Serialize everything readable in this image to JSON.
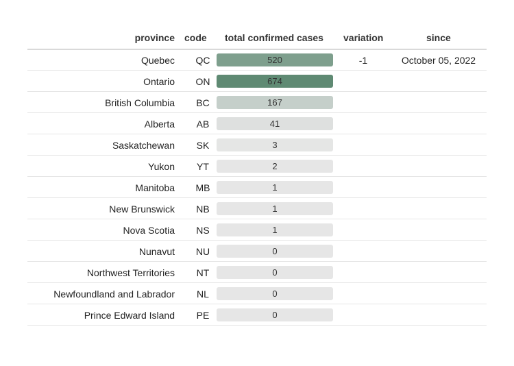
{
  "chart_data": {
    "type": "table",
    "columns": [
      "province",
      "code",
      "total confirmed cases",
      "variation",
      "since"
    ],
    "rows": [
      {
        "province": "Quebec",
        "code": "QC",
        "cases": 520,
        "variation": "-1",
        "since": "October 05, 2022"
      },
      {
        "province": "Ontario",
        "code": "ON",
        "cases": 674,
        "variation": "",
        "since": ""
      },
      {
        "province": "British Columbia",
        "code": "BC",
        "cases": 167,
        "variation": "",
        "since": ""
      },
      {
        "province": "Alberta",
        "code": "AB",
        "cases": 41,
        "variation": "",
        "since": ""
      },
      {
        "province": "Saskatchewan",
        "code": "SK",
        "cases": 3,
        "variation": "",
        "since": ""
      },
      {
        "province": "Yukon",
        "code": "YT",
        "cases": 2,
        "variation": "",
        "since": ""
      },
      {
        "province": "Manitoba",
        "code": "MB",
        "cases": 1,
        "variation": "",
        "since": ""
      },
      {
        "province": "New Brunswick",
        "code": "NB",
        "cases": 1,
        "variation": "",
        "since": ""
      },
      {
        "province": "Nova Scotia",
        "code": "NS",
        "cases": 1,
        "variation": "",
        "since": ""
      },
      {
        "province": "Nunavut",
        "code": "NU",
        "cases": 0,
        "variation": "",
        "since": ""
      },
      {
        "province": "Northwest Territories",
        "code": "NT",
        "cases": 0,
        "variation": "",
        "since": ""
      },
      {
        "province": "Newfoundland and Labrador",
        "code": "NL",
        "cases": 0,
        "variation": "",
        "since": ""
      },
      {
        "province": "Prince Edward Island",
        "code": "PE",
        "cases": 0,
        "variation": "",
        "since": ""
      }
    ],
    "bar_colors": {
      "low": "#e6e6e6",
      "high": "#5f8a73"
    }
  }
}
